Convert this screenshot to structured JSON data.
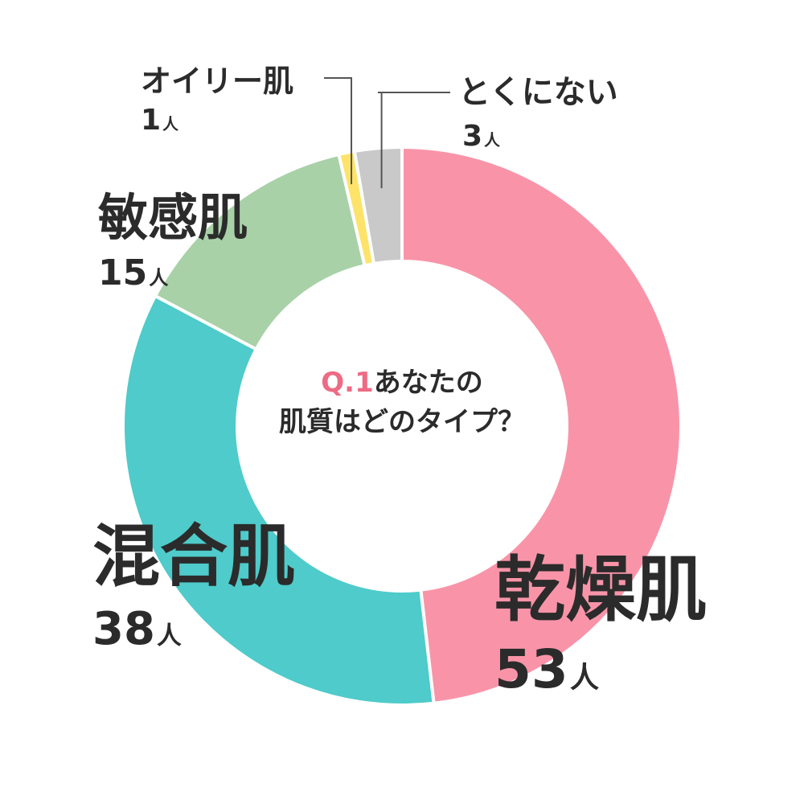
{
  "chart_data": {
    "type": "pie",
    "donut": true,
    "unit": "人",
    "center_label": {
      "qno": "Q.1",
      "line1": "あなたの",
      "line2": "肌質はどのタイプ？"
    },
    "slices": [
      {
        "label": "乾燥肌",
        "value": 53,
        "color": "#f994a8"
      },
      {
        "label": "混合肌",
        "value": 38,
        "color": "#4ecbca"
      },
      {
        "label": "敏感肌",
        "value": 15,
        "color": "#a8d1a8"
      },
      {
        "label": "オイリー肌",
        "value": 1,
        "color": "#fde36a"
      },
      {
        "label": "とくにない",
        "value": 3,
        "color": "#c9c9c9"
      }
    ],
    "colors": {
      "text": "#2b2b2b",
      "accent": "#ee6b84",
      "leader": "#555555"
    }
  }
}
